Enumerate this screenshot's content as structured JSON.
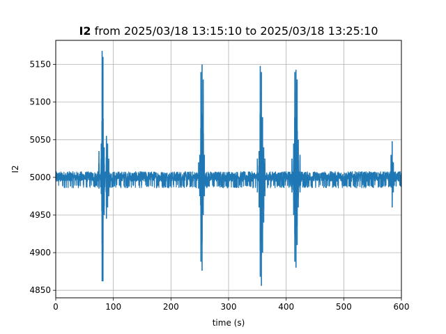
{
  "chart_data": {
    "type": "line",
    "title_bold": "I2",
    "title_rest": " from 2025/03/18 13:15:10 to 2025/03/18 13:25:10",
    "xlabel": "time (s)",
    "ylabel": "I2",
    "xlim": [
      0,
      600
    ],
    "ylim": [
      4840,
      5182
    ],
    "xticks": [
      0,
      100,
      200,
      300,
      400,
      500,
      600
    ],
    "yticks": [
      4850,
      4900,
      4950,
      5000,
      5050,
      5100,
      5150
    ],
    "grid": true,
    "baseline": 5000,
    "noise_band": [
      4987,
      5015
    ],
    "series_color": "#1f77b4",
    "series": [
      {
        "values_note_removed": true,
        "bursts": [
          {
            "t": 75,
            "min": 4985,
            "max": 5035
          },
          {
            "t": 79,
            "min": 4978,
            "max": 5045
          },
          {
            "t": 80.5,
            "min": 4862,
            "max": 5168
          },
          {
            "t": 82,
            "min": 4862,
            "max": 5160
          },
          {
            "t": 84,
            "min": 4950,
            "max": 5040
          },
          {
            "t": 88,
            "min": 4945,
            "max": 5055
          },
          {
            "t": 90,
            "min": 4960,
            "max": 5045
          },
          {
            "t": 92,
            "min": 4975,
            "max": 5025
          },
          {
            "t": 248,
            "min": 4985,
            "max": 5020
          },
          {
            "t": 250,
            "min": 4975,
            "max": 5030
          },
          {
            "t": 252,
            "min": 4888,
            "max": 5140
          },
          {
            "t": 254,
            "min": 4876,
            "max": 5150
          },
          {
            "t": 256,
            "min": 4950,
            "max": 5130
          },
          {
            "t": 258,
            "min": 4975,
            "max": 5030
          },
          {
            "t": 350,
            "min": 4980,
            "max": 5025
          },
          {
            "t": 353,
            "min": 4960,
            "max": 5035
          },
          {
            "t": 355,
            "min": 4868,
            "max": 5148
          },
          {
            "t": 357,
            "min": 4856,
            "max": 5140
          },
          {
            "t": 359,
            "min": 4900,
            "max": 5080
          },
          {
            "t": 361,
            "min": 4940,
            "max": 5040
          },
          {
            "t": 363,
            "min": 4975,
            "max": 5025
          },
          {
            "t": 410,
            "min": 4980,
            "max": 5025
          },
          {
            "t": 413,
            "min": 4950,
            "max": 5045
          },
          {
            "t": 415,
            "min": 4888,
            "max": 5140
          },
          {
            "t": 417,
            "min": 4880,
            "max": 5143
          },
          {
            "t": 419,
            "min": 4910,
            "max": 5130
          },
          {
            "t": 421,
            "min": 4960,
            "max": 5050
          },
          {
            "t": 424,
            "min": 4980,
            "max": 5030
          },
          {
            "t": 582,
            "min": 4990,
            "max": 5030
          },
          {
            "t": 584,
            "min": 4960,
            "max": 5048
          },
          {
            "t": 586,
            "min": 4980,
            "max": 5020
          }
        ]
      }
    ]
  }
}
